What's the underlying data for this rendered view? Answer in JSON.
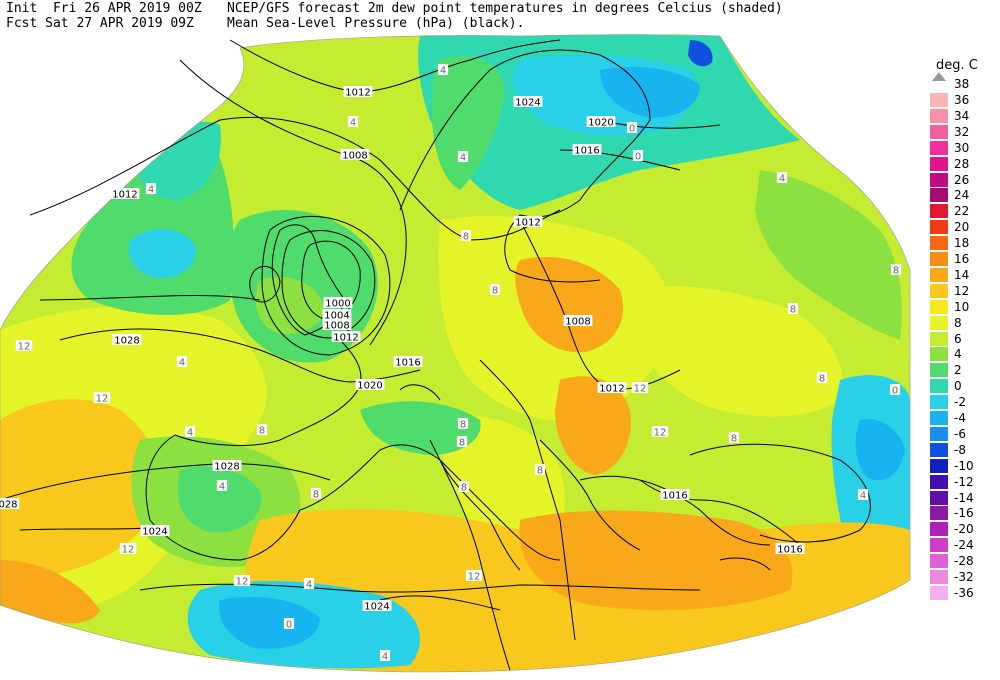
{
  "header": {
    "init_line": "Init  Fri 26 APR 2019 00Z",
    "fcst_line": "Fcst Sat 27 APR 2019 09Z",
    "title_line1": "NCEP/GFS forecast 2m dew point temperatures in degrees Celcius (shaded)",
    "title_line2": "Mean Sea-Level Pressure (hPa) (black)."
  },
  "legend": {
    "unit": "deg. C",
    "top_label": "38",
    "levels": [
      {
        "label": "36",
        "color": "#fcb4b4"
      },
      {
        "label": "34",
        "color": "#f890a8"
      },
      {
        "label": "32",
        "color": "#f0609c"
      },
      {
        "label": "30",
        "color": "#f0309c"
      },
      {
        "label": "28",
        "color": "#e0148c"
      },
      {
        "label": "26",
        "color": "#c00c80"
      },
      {
        "label": "24",
        "color": "#a80a70"
      },
      {
        "label": "22",
        "color": "#e01830"
      },
      {
        "label": "20",
        "color": "#f03c14"
      },
      {
        "label": "18",
        "color": "#f86810"
      },
      {
        "label": "16",
        "color": "#f88c14"
      },
      {
        "label": "14",
        "color": "#f8a818"
      },
      {
        "label": "12",
        "color": "#f8c81c"
      },
      {
        "label": "10",
        "color": "#f8e81c"
      },
      {
        "label": "8",
        "color": "#e4f428"
      },
      {
        "label": "6",
        "color": "#c4ec30"
      },
      {
        "label": "4",
        "color": "#8ce040"
      },
      {
        "label": "2",
        "color": "#50dc6c"
      },
      {
        "label": "0",
        "color": "#30d8b0"
      },
      {
        "label": "-2",
        "color": "#28d0e8"
      },
      {
        "label": "-4",
        "color": "#18b4f0"
      },
      {
        "label": "-6",
        "color": "#1890f0"
      },
      {
        "label": "-8",
        "color": "#1050e0"
      },
      {
        "label": "-10",
        "color": "#1020c0"
      },
      {
        "label": "-12",
        "color": "#4010b0"
      },
      {
        "label": "-14",
        "color": "#6010a8"
      },
      {
        "label": "-16",
        "color": "#8c18a8"
      },
      {
        "label": "-20",
        "color": "#b020b4"
      },
      {
        "label": "-24",
        "color": "#cc40c8"
      },
      {
        "label": "-28",
        "color": "#e060d8"
      },
      {
        "label": "-32",
        "color": "#ec88e4"
      },
      {
        "label": "-36",
        "color": "#f4b0f0"
      }
    ]
  },
  "isobar_labels": [
    {
      "text": "1012"
    },
    {
      "text": "1024"
    },
    {
      "text": "1020"
    },
    {
      "text": "1008"
    },
    {
      "text": "1016"
    },
    {
      "text": "1012"
    },
    {
      "text": "1012"
    },
    {
      "text": "1000"
    },
    {
      "text": "1004"
    },
    {
      "text": "1008"
    },
    {
      "text": "1012"
    },
    {
      "text": "1016"
    },
    {
      "text": "1028"
    },
    {
      "text": "1008"
    },
    {
      "text": "1020"
    },
    {
      "text": "1012"
    },
    {
      "text": "1028"
    },
    {
      "text": "1016"
    },
    {
      "text": "028"
    },
    {
      "text": "1024"
    },
    {
      "text": "1024"
    },
    {
      "text": "1016"
    }
  ],
  "dewpoint_labels": [
    {
      "text": "4"
    },
    {
      "text": "4"
    },
    {
      "text": "4"
    },
    {
      "text": "0"
    },
    {
      "text": "4"
    },
    {
      "text": "0"
    },
    {
      "text": "4"
    },
    {
      "text": "8"
    },
    {
      "text": "8"
    },
    {
      "text": "4"
    },
    {
      "text": "8"
    },
    {
      "text": "12"
    },
    {
      "text": "12"
    },
    {
      "text": "8"
    },
    {
      "text": "4"
    },
    {
      "text": "12"
    },
    {
      "text": "8"
    },
    {
      "text": "8"
    },
    {
      "text": "12"
    },
    {
      "text": "8"
    },
    {
      "text": "4"
    },
    {
      "text": "8"
    },
    {
      "text": "12"
    },
    {
      "text": "12"
    },
    {
      "text": "0"
    },
    {
      "text": "4"
    },
    {
      "text": "8"
    },
    {
      "text": "8"
    },
    {
      "text": "4"
    },
    {
      "text": "12"
    },
    {
      "text": "8"
    },
    {
      "text": "0"
    },
    {
      "text": "8"
    },
    {
      "text": "4"
    }
  ]
}
